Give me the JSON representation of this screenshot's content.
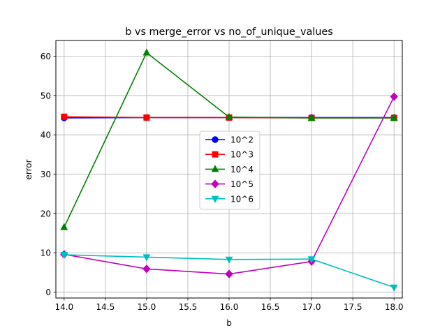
{
  "chart_data": {
    "type": "line",
    "title": "b vs merge_error vs no_of_unique_values",
    "xlabel": "b",
    "ylabel": "error",
    "xlim": [
      13.9,
      18.1
    ],
    "ylim": [
      -1.5,
      64
    ],
    "x_ticks": [
      14.0,
      14.5,
      15.0,
      15.5,
      16.0,
      16.5,
      17.0,
      17.5,
      18.0
    ],
    "x_tick_labels": [
      "14.0",
      "14.5",
      "15.0",
      "15.5",
      "16.0",
      "16.5",
      "17.0",
      "17.5",
      "18.0"
    ],
    "y_ticks": [
      0,
      10,
      20,
      30,
      40,
      50,
      60
    ],
    "y_tick_labels": [
      "0",
      "10",
      "20",
      "30",
      "40",
      "50",
      "60"
    ],
    "grid": true,
    "legend_position": "center",
    "x": [
      14,
      15,
      16,
      17,
      18
    ],
    "series": [
      {
        "name": "10^2",
        "color": "#0000ff",
        "marker": "circle",
        "values": [
          44.3,
          44.4,
          44.4,
          44.4,
          44.4
        ]
      },
      {
        "name": "10^3",
        "color": "#ff0000",
        "marker": "square",
        "values": [
          44.6,
          44.4,
          44.4,
          44.3,
          44.3
        ]
      },
      {
        "name": "10^4",
        "color": "#008000",
        "marker": "triangle-up",
        "values": [
          16.5,
          60.9,
          44.5,
          44.3,
          44.3
        ]
      },
      {
        "name": "10^5",
        "color": "#bf00bf",
        "marker": "diamond",
        "values": [
          9.6,
          5.9,
          4.6,
          7.8,
          49.7
        ]
      },
      {
        "name": "10^6",
        "color": "#00bfbf",
        "marker": "triangle-down",
        "values": [
          9.5,
          8.9,
          8.3,
          8.4,
          1.2
        ]
      }
    ]
  }
}
